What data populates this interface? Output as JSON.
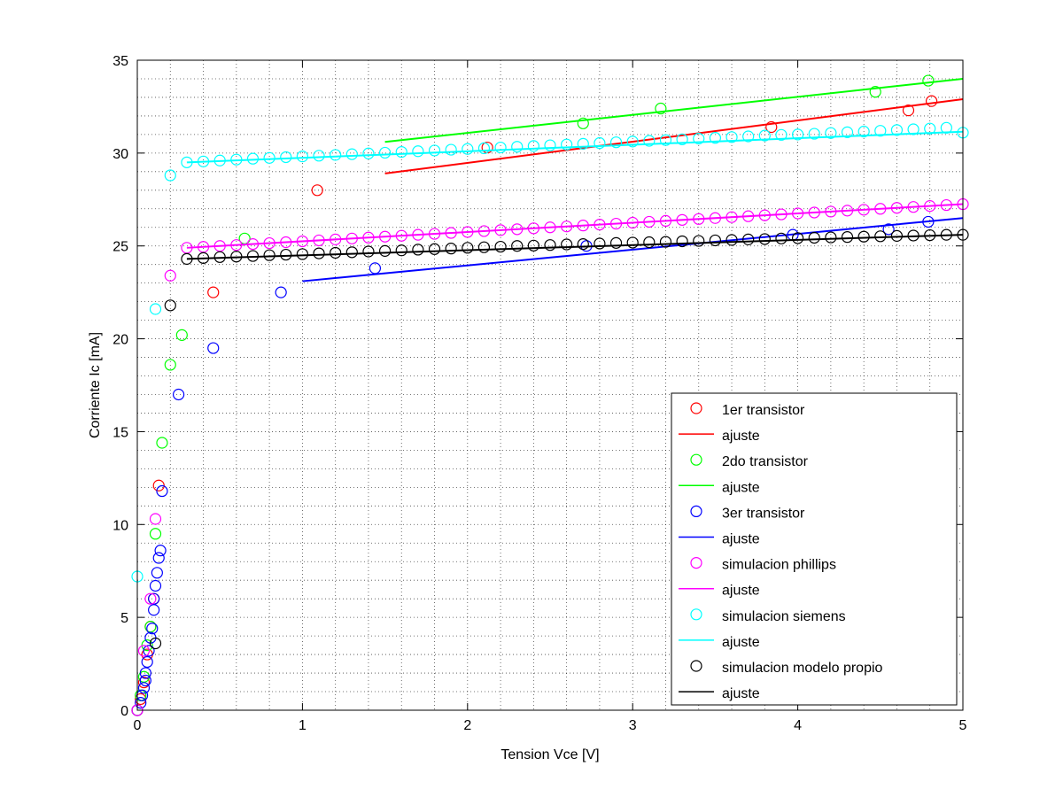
{
  "chart_data": {
    "type": "scatter",
    "title": "",
    "xlabel": "Tension Vce [V]",
    "ylabel": "Corriente Ic [mA]",
    "xlim": [
      0,
      5
    ],
    "ylim": [
      0,
      35
    ],
    "xticks": [
      0,
      1,
      2,
      3,
      4,
      5
    ],
    "xtick_labels": [
      "0",
      "1",
      "2",
      "3",
      "4",
      "5"
    ],
    "yticks": [
      0,
      5,
      10,
      15,
      20,
      25,
      30,
      35
    ],
    "ytick_labels": [
      "0",
      "5",
      "10",
      "15",
      "20",
      "25",
      "30",
      "35"
    ],
    "grid": "dotted",
    "grid_minor": true,
    "legend_position": "bottom-right",
    "legend_entries": [
      {
        "label": "1er transistor",
        "style": "marker",
        "color": "#ff0000"
      },
      {
        "label": "ajuste",
        "style": "line",
        "color": "#ff0000"
      },
      {
        "label": "2do transistor",
        "style": "marker",
        "color": "#00ff00"
      },
      {
        "label": "ajuste",
        "style": "line",
        "color": "#00ff00"
      },
      {
        "label": "3er transistor",
        "style": "marker",
        "color": "#0000ff"
      },
      {
        "label": "ajuste",
        "style": "line",
        "color": "#0000ff"
      },
      {
        "label": "simulacion phillips",
        "style": "marker",
        "color": "#ff00ff"
      },
      {
        "label": "ajuste",
        "style": "line",
        "color": "#ff00ff"
      },
      {
        "label": "simulacion siemens",
        "style": "marker",
        "color": "#00ffff"
      },
      {
        "label": "ajuste",
        "style": "line",
        "color": "#00ffff"
      },
      {
        "label": "simulacion modelo propio",
        "style": "marker",
        "color": "#000000"
      },
      {
        "label": "ajuste",
        "style": "line",
        "color": "#000000"
      }
    ],
    "series": [
      {
        "name": "1er transistor",
        "kind": "scatter",
        "color": "#ff0000",
        "x": [
          0.0,
          0.02,
          0.04,
          0.06,
          0.08,
          0.1,
          0.13,
          0.46,
          1.09,
          2.12,
          3.84,
          4.67,
          4.81
        ],
        "y": [
          0.0,
          0.6,
          1.5,
          3.0,
          4.5,
          6.0,
          12.1,
          22.5,
          28.0,
          30.3,
          31.4,
          32.3,
          32.8
        ]
      },
      {
        "name": "ajuste",
        "kind": "line",
        "color": "#ff0000",
        "x": [
          1.5,
          5.0
        ],
        "y": [
          28.9,
          32.9
        ]
      },
      {
        "name": "2do transistor",
        "kind": "scatter",
        "color": "#00ff00",
        "x": [
          0.0,
          0.02,
          0.04,
          0.06,
          0.08,
          0.11,
          0.15,
          0.2,
          0.27,
          0.65,
          2.7,
          3.17,
          4.47,
          4.79
        ],
        "y": [
          0.0,
          0.8,
          1.8,
          3.5,
          4.5,
          9.5,
          14.4,
          18.6,
          20.2,
          25.4,
          31.6,
          32.4,
          33.3,
          33.9
        ]
      },
      {
        "name": "ajuste",
        "kind": "line",
        "color": "#00ff00",
        "x": [
          1.5,
          5.0
        ],
        "y": [
          30.6,
          34.0
        ]
      },
      {
        "name": "3er transistor",
        "kind": "scatter",
        "color": "#0000ff",
        "x": [
          0.0,
          0.02,
          0.03,
          0.04,
          0.05,
          0.05,
          0.06,
          0.07,
          0.08,
          0.09,
          0.1,
          0.1,
          0.11,
          0.12,
          0.13,
          0.14,
          0.15,
          0.25,
          0.46,
          0.87,
          1.44,
          2.72,
          3.97,
          4.55,
          4.79
        ],
        "y": [
          0.0,
          0.4,
          0.8,
          1.2,
          1.6,
          2.0,
          2.6,
          3.2,
          3.9,
          4.4,
          5.4,
          6.0,
          6.7,
          7.4,
          8.2,
          8.6,
          11.8,
          17.0,
          19.5,
          22.5,
          23.8,
          25.0,
          25.6,
          25.9,
          26.3
        ]
      },
      {
        "name": "ajuste",
        "kind": "line",
        "color": "#0000ff",
        "x": [
          1.0,
          5.0
        ],
        "y": [
          23.1,
          26.5
        ]
      },
      {
        "name": "simulacion phillips",
        "kind": "scatter",
        "color": "#ff00ff",
        "x": [
          0.0,
          0.04,
          0.08,
          0.11,
          0.2,
          0.3,
          0.4,
          0.5,
          0.6,
          0.7,
          0.8,
          0.9,
          1.0,
          1.1,
          1.2,
          1.3,
          1.4,
          1.5,
          1.6,
          1.7,
          1.8,
          1.9,
          2.0,
          2.1,
          2.2,
          2.3,
          2.4,
          2.5,
          2.6,
          2.7,
          2.8,
          2.9,
          3.0,
          3.1,
          3.2,
          3.3,
          3.4,
          3.5,
          3.6,
          3.7,
          3.8,
          3.9,
          4.0,
          4.1,
          4.2,
          4.3,
          4.4,
          4.5,
          4.6,
          4.7,
          4.8,
          4.9,
          5.0
        ],
        "y": [
          0.0,
          3.2,
          6.0,
          10.3,
          23.4,
          24.9,
          24.95,
          25.0,
          25.05,
          25.1,
          25.15,
          25.2,
          25.25,
          25.3,
          25.35,
          25.4,
          25.45,
          25.5,
          25.55,
          25.6,
          25.65,
          25.7,
          25.75,
          25.8,
          25.85,
          25.9,
          25.95,
          26.0,
          26.05,
          26.1,
          26.15,
          26.2,
          26.25,
          26.3,
          26.35,
          26.4,
          26.45,
          26.5,
          26.55,
          26.6,
          26.65,
          26.7,
          26.75,
          26.8,
          26.85,
          26.9,
          26.95,
          27.0,
          27.05,
          27.1,
          27.15,
          27.2,
          27.25
        ]
      },
      {
        "name": "ajuste",
        "kind": "line",
        "color": "#ff00ff",
        "x": [
          0.3,
          5.0
        ],
        "y": [
          24.9,
          27.25
        ]
      },
      {
        "name": "simulacion siemens",
        "kind": "scatter",
        "color": "#00ffff",
        "x": [
          0.0,
          0.11,
          0.2,
          0.3,
          0.4,
          0.5,
          0.6,
          0.7,
          0.8,
          0.9,
          1.0,
          1.1,
          1.2,
          1.3,
          1.4,
          1.5,
          1.6,
          1.7,
          1.8,
          1.9,
          2.0,
          2.1,
          2.2,
          2.3,
          2.4,
          2.5,
          2.6,
          2.7,
          2.8,
          2.9,
          3.0,
          3.1,
          3.2,
          3.3,
          3.4,
          3.5,
          3.6,
          3.7,
          3.8,
          3.9,
          4.0,
          4.1,
          4.2,
          4.3,
          4.4,
          4.5,
          4.6,
          4.7,
          4.8,
          4.9,
          5.0
        ],
        "y": [
          7.2,
          21.6,
          28.8,
          29.5,
          29.55,
          29.6,
          29.65,
          29.7,
          29.74,
          29.78,
          29.82,
          29.86,
          29.9,
          29.94,
          29.98,
          30.02,
          30.06,
          30.1,
          30.14,
          30.18,
          30.22,
          30.26,
          30.3,
          30.34,
          30.38,
          30.42,
          30.46,
          30.5,
          30.54,
          30.58,
          30.62,
          30.66,
          30.7,
          30.74,
          30.78,
          30.82,
          30.86,
          30.9,
          30.94,
          30.98,
          31.0,
          31.04,
          31.08,
          31.12,
          31.16,
          31.2,
          31.24,
          31.28,
          31.32,
          31.36,
          31.1
        ]
      },
      {
        "name": "ajuste",
        "kind": "line",
        "color": "#00ffff",
        "x": [
          0.3,
          5.0
        ],
        "y": [
          29.5,
          31.15
        ]
      },
      {
        "name": "simulacion modelo propio",
        "kind": "scatter",
        "color": "#000000",
        "x": [
          0.11,
          0.2,
          0.3,
          0.4,
          0.5,
          0.6,
          0.7,
          0.8,
          0.9,
          1.0,
          1.1,
          1.2,
          1.3,
          1.4,
          1.5,
          1.6,
          1.7,
          1.8,
          1.9,
          2.0,
          2.1,
          2.2,
          2.3,
          2.4,
          2.5,
          2.6,
          2.7,
          2.8,
          2.9,
          3.0,
          3.1,
          3.2,
          3.3,
          3.4,
          3.5,
          3.6,
          3.7,
          3.8,
          3.9,
          4.0,
          4.1,
          4.2,
          4.3,
          4.4,
          4.5,
          4.6,
          4.7,
          4.8,
          4.9,
          5.0
        ],
        "y": [
          3.6,
          21.8,
          24.3,
          24.35,
          24.4,
          24.43,
          24.46,
          24.5,
          24.53,
          24.56,
          24.6,
          24.63,
          24.66,
          24.7,
          24.73,
          24.76,
          24.8,
          24.83,
          24.86,
          24.9,
          24.93,
          24.96,
          25.0,
          25.02,
          25.05,
          25.08,
          25.1,
          25.13,
          25.16,
          25.18,
          25.2,
          25.22,
          25.25,
          25.27,
          25.3,
          25.32,
          25.35,
          25.37,
          25.4,
          25.42,
          25.44,
          25.46,
          25.48,
          25.5,
          25.52,
          25.54,
          25.56,
          25.58,
          25.6,
          25.6
        ]
      },
      {
        "name": "ajuste",
        "kind": "line",
        "color": "#000000",
        "x": [
          0.3,
          5.0
        ],
        "y": [
          24.3,
          25.6
        ]
      }
    ]
  }
}
